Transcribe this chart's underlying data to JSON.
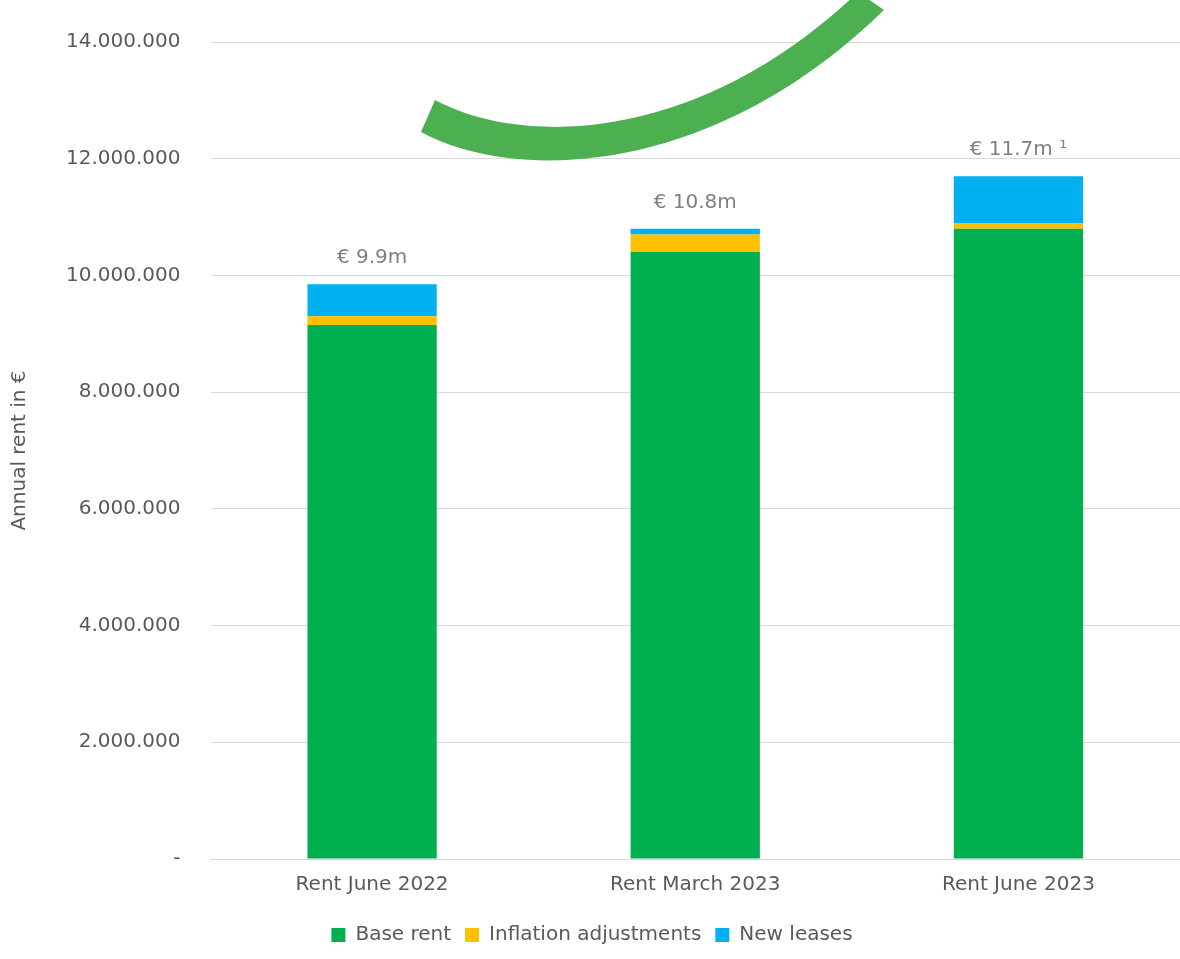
{
  "chart_data": {
    "type": "bar",
    "stacked": true,
    "ylabel": "Annual rent in €",
    "categories": [
      "Rent June 2022",
      "Rent March 2023",
      "Rent June 2023"
    ],
    "series": [
      {
        "name": "Base rent",
        "color": "#00b050",
        "values": [
          9150000,
          10400000,
          10800000
        ]
      },
      {
        "name": "Inflation adjustments",
        "color": "#ffc000",
        "values": [
          150000,
          300000,
          100000
        ]
      },
      {
        "name": "New leases",
        "color": "#00b0f0",
        "values": [
          550000,
          100000,
          800000
        ]
      }
    ],
    "totals": [
      "€ 9.9m",
      "€ 10.8m",
      "€ 11.7m ¹"
    ],
    "ylim": [
      0,
      14000000
    ],
    "yticks": [
      {
        "value": 0,
        "label": "-"
      },
      {
        "value": 2000000,
        "label": "2.000.000"
      },
      {
        "value": 4000000,
        "label": "4.000.000"
      },
      {
        "value": 6000000,
        "label": "6.000.000"
      },
      {
        "value": 8000000,
        "label": "8.000.000"
      },
      {
        "value": 10000000,
        "label": "10.000.000"
      },
      {
        "value": 12000000,
        "label": "12.000.000"
      },
      {
        "value": 14000000,
        "label": "14.000.000"
      }
    ],
    "grid": "y",
    "legend": "bottom"
  }
}
